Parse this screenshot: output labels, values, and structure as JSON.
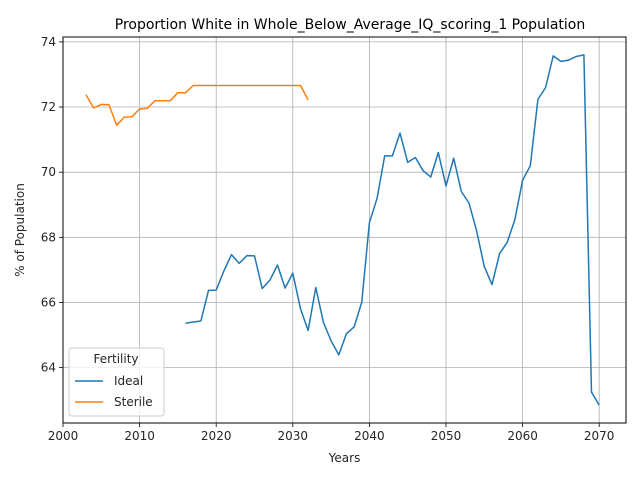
{
  "chart_data": {
    "type": "line",
    "title": "Proportion White in Whole_Below_Average_IQ_scoring_1 Population",
    "xlabel": "Years",
    "ylabel": "% of Population",
    "xlim": [
      2000,
      2073.5
    ],
    "ylim": [
      62.3,
      74.15
    ],
    "xticks": [
      2000,
      2010,
      2020,
      2030,
      2040,
      2050,
      2060,
      2070
    ],
    "yticks": [
      64,
      66,
      68,
      70,
      72,
      74
    ],
    "grid": true,
    "legend": {
      "title": "Fertility",
      "placement": "lower-left"
    },
    "series": [
      {
        "name": "Ideal",
        "color": "#1f77b4",
        "x": [
          2016,
          2017,
          2018,
          2019,
          2020,
          2021,
          2022,
          2023,
          2024,
          2025,
          2026,
          2027,
          2028,
          2029,
          2030,
          2031,
          2032,
          2033,
          2034,
          2035,
          2036,
          2037,
          2038,
          2039,
          2040,
          2041,
          2042,
          2043,
          2044,
          2045,
          2046,
          2047,
          2048,
          2049,
          2050,
          2051,
          2052,
          2053,
          2054,
          2055,
          2056,
          2057,
          2058,
          2059,
          2060,
          2061,
          2062,
          2063,
          2064,
          2065,
          2066,
          2067,
          2068,
          2069,
          2070
        ],
        "y": [
          65.36,
          65.4,
          65.43,
          66.37,
          66.38,
          66.97,
          67.47,
          67.2,
          67.44,
          67.43,
          66.43,
          66.68,
          67.15,
          66.44,
          66.9,
          65.81,
          65.14,
          66.46,
          65.39,
          64.82,
          64.39,
          65.04,
          65.25,
          66.0,
          68.45,
          69.2,
          70.5,
          70.5,
          71.2,
          70.3,
          70.45,
          70.05,
          69.85,
          70.6,
          69.58,
          70.43,
          69.41,
          69.05,
          68.2,
          67.1,
          66.55,
          67.5,
          67.85,
          68.55,
          69.75,
          70.2,
          72.23,
          72.6,
          73.57,
          73.4,
          73.44,
          73.55,
          73.6,
          63.25,
          62.85
        ]
      },
      {
        "name": "Sterile",
        "color": "#ff7f0e",
        "x": [
          2003,
          2004,
          2005,
          2006,
          2007,
          2008,
          2009,
          2010,
          2011,
          2012,
          2013,
          2014,
          2015,
          2016,
          2017,
          2018,
          2019,
          2020,
          2021,
          2022,
          2023,
          2024,
          2025,
          2026,
          2027,
          2028,
          2029,
          2030,
          2031,
          2032
        ],
        "y": [
          72.38,
          71.97,
          72.08,
          72.07,
          71.44,
          71.69,
          71.7,
          71.94,
          71.96,
          72.19,
          72.19,
          72.19,
          72.44,
          72.44,
          72.66,
          72.66,
          72.66,
          72.66,
          72.66,
          72.66,
          72.66,
          72.66,
          72.66,
          72.66,
          72.66,
          72.66,
          72.66,
          72.66,
          72.66,
          72.22
        ]
      }
    ]
  }
}
